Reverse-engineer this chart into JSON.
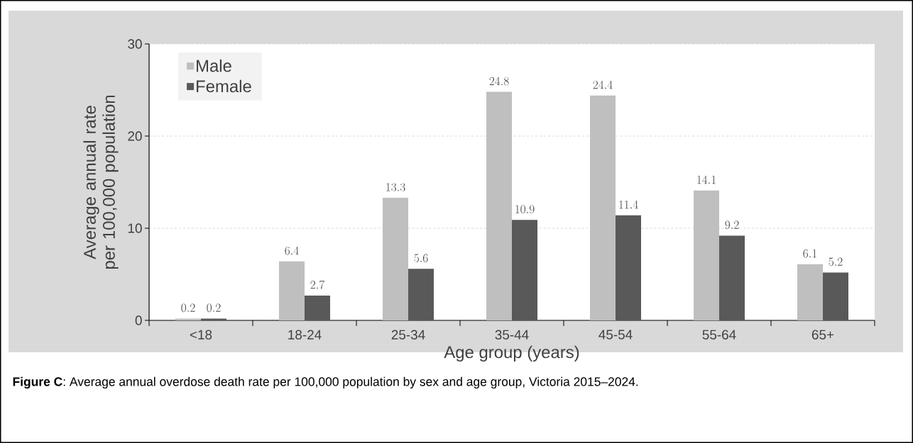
{
  "chart_data": {
    "type": "bar",
    "xlabel": "Age group (years)",
    "ylabel": "Average annual rate per 100,000 population",
    "categories": [
      "<18",
      "18-24",
      "25-34",
      "35-44",
      "45-54",
      "55-64",
      "65+"
    ],
    "series": [
      {
        "name": "Male",
        "color": "#bfbfbf",
        "values": [
          0.2,
          6.4,
          13.3,
          24.8,
          24.4,
          14.1,
          6.1
        ]
      },
      {
        "name": "Female",
        "color": "#595959",
        "values": [
          0.2,
          2.7,
          5.6,
          10.9,
          11.4,
          9.2,
          5.2
        ]
      }
    ],
    "ylim": [
      0,
      30
    ],
    "yticks": [
      0,
      10,
      20,
      30
    ],
    "grid": "y",
    "legend": "top left",
    "data_labels": true,
    "annotations": [
      "**Figure C**: Average annual overdose death rate per 100,000 population by sex and age group, Victoria 2015–2024."
    ]
  }
}
